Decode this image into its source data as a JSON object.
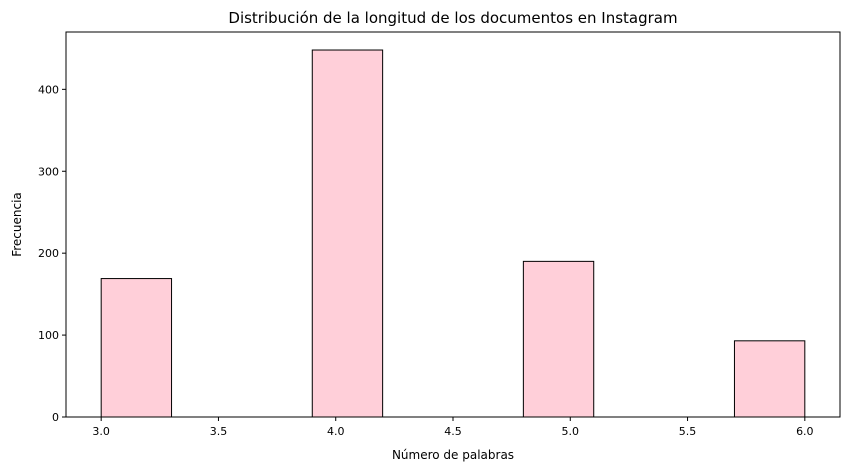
{
  "chart_data": {
    "type": "bar",
    "title": "Distribución de la longitud de los documentos en Instagram",
    "xlabel": "Número de palabras",
    "ylabel": "Frecuencia",
    "xlim": [
      2.85,
      6.15
    ],
    "ylim": [
      0,
      470
    ],
    "xticks": [
      "3.0",
      "3.5",
      "4.0",
      "4.5",
      "5.0",
      "5.5",
      "6.0"
    ],
    "yticks": [
      "0",
      "100",
      "200",
      "300",
      "400"
    ],
    "bins": [
      {
        "x0": 3.0,
        "x1": 3.3,
        "value": 169
      },
      {
        "x0": 3.3,
        "x1": 3.6,
        "value": 0
      },
      {
        "x0": 3.6,
        "x1": 3.9,
        "value": 0
      },
      {
        "x0": 3.9,
        "x1": 4.2,
        "value": 448
      },
      {
        "x0": 4.2,
        "x1": 4.5,
        "value": 0
      },
      {
        "x0": 4.5,
        "x1": 4.8,
        "value": 0
      },
      {
        "x0": 4.8,
        "x1": 5.1,
        "value": 190
      },
      {
        "x0": 5.1,
        "x1": 5.4,
        "value": 0
      },
      {
        "x0": 5.4,
        "x1": 5.7,
        "value": 0
      },
      {
        "x0": 5.7,
        "x1": 6.0,
        "value": 93
      }
    ],
    "bar_color": "#ffcfd9",
    "edge_color": "#000000",
    "grid": false,
    "legend": "none"
  }
}
